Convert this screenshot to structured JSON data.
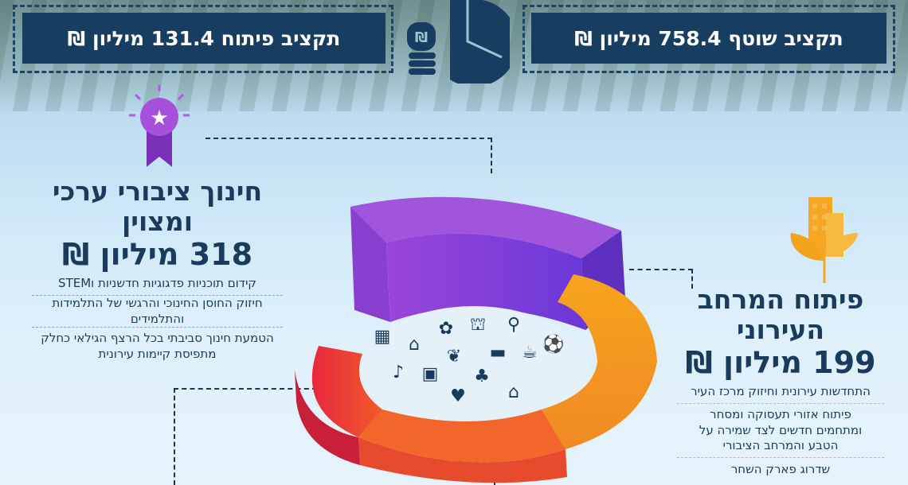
{
  "header": {
    "shared_budget": "תקציב שוטף 758.4 מיליון ₪",
    "development_budget": "תקציב פיתוח 131.4 מיליון ₪",
    "center_icon": "hand-coins-pie-chart-icon"
  },
  "education": {
    "icon": "award-ribbon-star-icon",
    "title": "חינוך ציבורי ערכי ומצוין",
    "amount": "318 מיליון ₪",
    "items": [
      "קידום תוכניות פדגוגיות חדשניות וSTEM",
      "חיזוק החוסן החינוכי והרגשי של התלמידות והתלמידים",
      "הטמעת חינוך סביבתי בכל הרצף הגילאי כחלק מתפיסת קיימות עירונית"
    ],
    "color": "#8b3fd0"
  },
  "urban": {
    "icon": "city-buildings-leaves-icon",
    "title": "פיתוח המרחב העירוני",
    "amount": "199 מיליון ₪",
    "items": [
      "התחדשות עירונית וחיזוק מרכז העיר",
      "פיתוח אזורי תעסוקה ומסחר ומתחמים חדשים לצד שמירה על הטבע והמרחב הציבורי",
      "שדרוג פארק השחר"
    ],
    "color": "#f29a1e"
  },
  "ring_icons": [
    "building",
    "home",
    "flower",
    "graduation-cap",
    "bicycle",
    "leaf",
    "car",
    "coffee",
    "ball",
    "music",
    "bag",
    "tree",
    "heart",
    "factory"
  ]
}
